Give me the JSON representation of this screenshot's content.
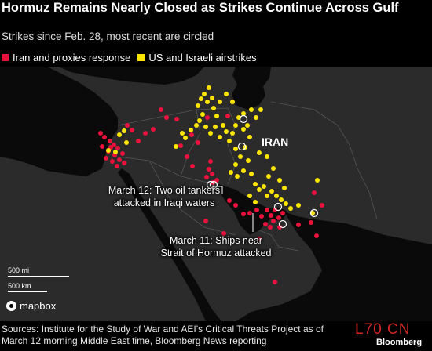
{
  "title": "Hormuz Remains Nearly Closed as Strikes Continue Across Gulf",
  "subtitle": "Strikes since Feb. 28, most recent are circled",
  "legend": [
    {
      "label": "Iran and proxies response",
      "color": "#e8123c"
    },
    {
      "label": "US and Israeli airstrikes",
      "color": "#ffe600"
    }
  ],
  "map_labels": {
    "country": "IRAN"
  },
  "annotations": {
    "march12": "March 12: Two oil tankers attacked in Iraqi waters",
    "march11": "March 11: Ships near Strait of Hormuz attacked"
  },
  "scale": {
    "mi": "500 mi",
    "km": "500 km"
  },
  "attribution": "mapbox",
  "footer": "Sources: Institute for the Study of War and AEI’s Critical Threats Project as of March 12 morning Middle East time, Bloomberg News reporting",
  "watermark": "L70 CN",
  "logo": "Bloomberg",
  "colors": {
    "iran": "#e8123c",
    "us": "#ffe600",
    "land": "#2b2b2b",
    "water": "#0a0a0a",
    "border": "#555555"
  }
}
